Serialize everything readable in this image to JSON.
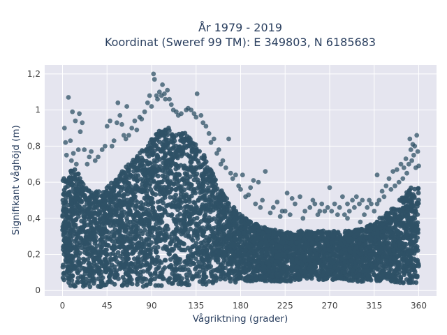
{
  "chart_data": {
    "type": "scatter",
    "title_line1": "År 1979 - 2019",
    "title_line2": "Koordinat (Sweref 99 TM): E 349803, N 6185683",
    "xlabel": "Vågriktning (grader)",
    "ylabel": "Signifikant våghöjd (m)",
    "xlim": [
      -18,
      378
    ],
    "ylim": [
      -0.03,
      1.25
    ],
    "xticks": [
      0,
      45,
      90,
      135,
      180,
      225,
      270,
      315,
      360
    ],
    "xtick_labels": [
      "0",
      "45",
      "90",
      "135",
      "180",
      "225",
      "270",
      "315",
      "360"
    ],
    "yticks": [
      0,
      0.2,
      0.4,
      0.6,
      0.8,
      1,
      1.2
    ],
    "ytick_labels": [
      "0",
      "0,2",
      "0,4",
      "0,6",
      "0,8",
      "1",
      "1,2"
    ],
    "grid": true,
    "marker_color": "#2f5166",
    "plot_background": "#e5e5ef",
    "envelope": {
      "x": [
        0,
        5,
        10,
        15,
        20,
        30,
        40,
        50,
        60,
        70,
        80,
        90,
        95,
        100,
        105,
        110,
        115,
        120,
        125,
        130,
        135,
        140,
        150,
        160,
        170,
        180,
        190,
        200,
        210,
        220,
        230,
        240,
        250,
        260,
        270,
        280,
        290,
        300,
        310,
        320,
        330,
        340,
        350,
        355,
        360
      ],
      "upper": [
        0.62,
        0.65,
        0.68,
        0.66,
        0.6,
        0.55,
        0.56,
        0.6,
        0.66,
        0.72,
        0.78,
        0.84,
        0.87,
        0.9,
        0.9,
        0.9,
        0.89,
        0.88,
        0.87,
        0.85,
        0.83,
        0.78,
        0.68,
        0.56,
        0.48,
        0.42,
        0.38,
        0.36,
        0.34,
        0.33,
        0.32,
        0.33,
        0.33,
        0.33,
        0.33,
        0.33,
        0.33,
        0.34,
        0.36,
        0.4,
        0.44,
        0.5,
        0.56,
        0.58,
        0.57
      ],
      "lower": [
        0.05,
        0.03,
        0.02,
        0.02,
        0.02,
        0.02,
        0.02,
        0.02,
        0.02,
        0.02,
        0.02,
        0.02,
        0.02,
        0.02,
        0.03,
        0.03,
        0.03,
        0.03,
        0.03,
        0.03,
        0.03,
        0.03,
        0.03,
        0.04,
        0.04,
        0.05,
        0.05,
        0.05,
        0.05,
        0.05,
        0.05,
        0.06,
        0.06,
        0.06,
        0.06,
        0.06,
        0.05,
        0.05,
        0.05,
        0.05,
        0.05,
        0.04,
        0.04,
        0.04,
        0.04
      ]
    },
    "outliers": [
      [
        2,
        0.9
      ],
      [
        3,
        0.82
      ],
      [
        4,
        0.75
      ],
      [
        6,
        1.07
      ],
      [
        8,
        0.83
      ],
      [
        9,
        0.72
      ],
      [
        10,
        0.99
      ],
      [
        11,
        0.76
      ],
      [
        13,
        0.94
      ],
      [
        14,
        0.7
      ],
      [
        16,
        0.78
      ],
      [
        17,
        0.98
      ],
      [
        18,
        0.88
      ],
      [
        20,
        0.93
      ],
      [
        22,
        0.78
      ],
      [
        25,
        0.7
      ],
      [
        27,
        0.74
      ],
      [
        29,
        0.77
      ],
      [
        33,
        0.72
      ],
      [
        36,
        0.74
      ],
      [
        40,
        0.78
      ],
      [
        43,
        0.8
      ],
      [
        45,
        0.91
      ],
      [
        48,
        0.94
      ],
      [
        50,
        0.8
      ],
      [
        52,
        0.83
      ],
      [
        55,
        0.93
      ],
      [
        56,
        1.04
      ],
      [
        58,
        0.97
      ],
      [
        60,
        0.92
      ],
      [
        62,
        0.86
      ],
      [
        64,
        0.84
      ],
      [
        65,
        1.02
      ],
      [
        67,
        0.86
      ],
      [
        70,
        0.9
      ],
      [
        73,
        0.94
      ],
      [
        75,
        0.89
      ],
      [
        78,
        0.96
      ],
      [
        80,
        0.95
      ],
      [
        83,
        0.99
      ],
      [
        86,
        1.04
      ],
      [
        88,
        1.08
      ],
      [
        90,
        1.02
      ],
      [
        92,
        1.2
      ],
      [
        93,
        1.17
      ],
      [
        95,
        1.08
      ],
      [
        96,
        1.06
      ],
      [
        98,
        1.1
      ],
      [
        100,
        1.08
      ],
      [
        101,
        1.14
      ],
      [
        103,
        1.09
      ],
      [
        104,
        1.06
      ],
      [
        106,
        1.11
      ],
      [
        108,
        1.06
      ],
      [
        110,
        1.03
      ],
      [
        112,
        1.0
      ],
      [
        115,
        0.99
      ],
      [
        117,
        0.97
      ],
      [
        120,
        0.98
      ],
      [
        125,
        1.0
      ],
      [
        127,
        1.01
      ],
      [
        130,
        1.0
      ],
      [
        133,
        0.98
      ],
      [
        135,
        0.96
      ],
      [
        136,
        1.09
      ],
      [
        140,
        0.97
      ],
      [
        142,
        0.93
      ],
      [
        145,
        0.91
      ],
      [
        148,
        0.87
      ],
      [
        150,
        0.82
      ],
      [
        153,
        0.84
      ],
      [
        156,
        0.76
      ],
      [
        158,
        0.78
      ],
      [
        160,
        0.7
      ],
      [
        162,
        0.72
      ],
      [
        165,
        0.68
      ],
      [
        168,
        0.84
      ],
      [
        170,
        0.65
      ],
      [
        172,
        0.62
      ],
      [
        175,
        0.64
      ],
      [
        178,
        0.58
      ],
      [
        180,
        0.56
      ],
      [
        182,
        0.64
      ],
      [
        185,
        0.52
      ],
      [
        188,
        0.53
      ],
      [
        190,
        0.57
      ],
      [
        193,
        0.61
      ],
      [
        195,
        0.48
      ],
      [
        198,
        0.6
      ],
      [
        200,
        0.46
      ],
      [
        202,
        0.5
      ],
      [
        205,
        0.66
      ],
      [
        210,
        0.43
      ],
      [
        213,
        0.46
      ],
      [
        217,
        0.49
      ],
      [
        220,
        0.41
      ],
      [
        222,
        0.44
      ],
      [
        225,
        0.44
      ],
      [
        227,
        0.54
      ],
      [
        230,
        0.42
      ],
      [
        232,
        0.51
      ],
      [
        235,
        0.48
      ],
      [
        240,
        0.52
      ],
      [
        243,
        0.4
      ],
      [
        245,
        0.44
      ],
      [
        250,
        0.46
      ],
      [
        253,
        0.5
      ],
      [
        255,
        0.48
      ],
      [
        258,
        0.42
      ],
      [
        260,
        0.44
      ],
      [
        262,
        0.48
      ],
      [
        265,
        0.44
      ],
      [
        268,
        0.46
      ],
      [
        270,
        0.57
      ],
      [
        272,
        0.44
      ],
      [
        275,
        0.48
      ],
      [
        278,
        0.42
      ],
      [
        280,
        0.46
      ],
      [
        283,
        0.52
      ],
      [
        285,
        0.42
      ],
      [
        288,
        0.48
      ],
      [
        290,
        0.44
      ],
      [
        293,
        0.5
      ],
      [
        295,
        0.46
      ],
      [
        297,
        0.52
      ],
      [
        300,
        0.48
      ],
      [
        303,
        0.5
      ],
      [
        305,
        0.42
      ],
      [
        308,
        0.46
      ],
      [
        310,
        0.5
      ],
      [
        312,
        0.48
      ],
      [
        315,
        0.44
      ],
      [
        318,
        0.48
      ],
      [
        320,
        0.5
      ],
      [
        323,
        0.55
      ],
      [
        325,
        0.52
      ],
      [
        327,
        0.58
      ],
      [
        330,
        0.62
      ],
      [
        332,
        0.56
      ],
      [
        334,
        0.66
      ],
      [
        336,
        0.58
      ],
      [
        338,
        0.67
      ],
      [
        340,
        0.6
      ],
      [
        342,
        0.7
      ],
      [
        344,
        0.62
      ],
      [
        345,
        0.68
      ],
      [
        347,
        0.73
      ],
      [
        348,
        0.65
      ],
      [
        350,
        0.7
      ],
      [
        351,
        0.84
      ],
      [
        352,
        0.78
      ],
      [
        353,
        0.72
      ],
      [
        354,
        0.81
      ],
      [
        355,
        0.75
      ],
      [
        356,
        0.8
      ],
      [
        357,
        0.68
      ],
      [
        358,
        0.86
      ],
      [
        359,
        0.77
      ],
      [
        360,
        0.69
      ],
      [
        318,
        0.64
      ],
      [
        301,
        0.38
      ],
      [
        288,
        0.4
      ]
    ]
  }
}
